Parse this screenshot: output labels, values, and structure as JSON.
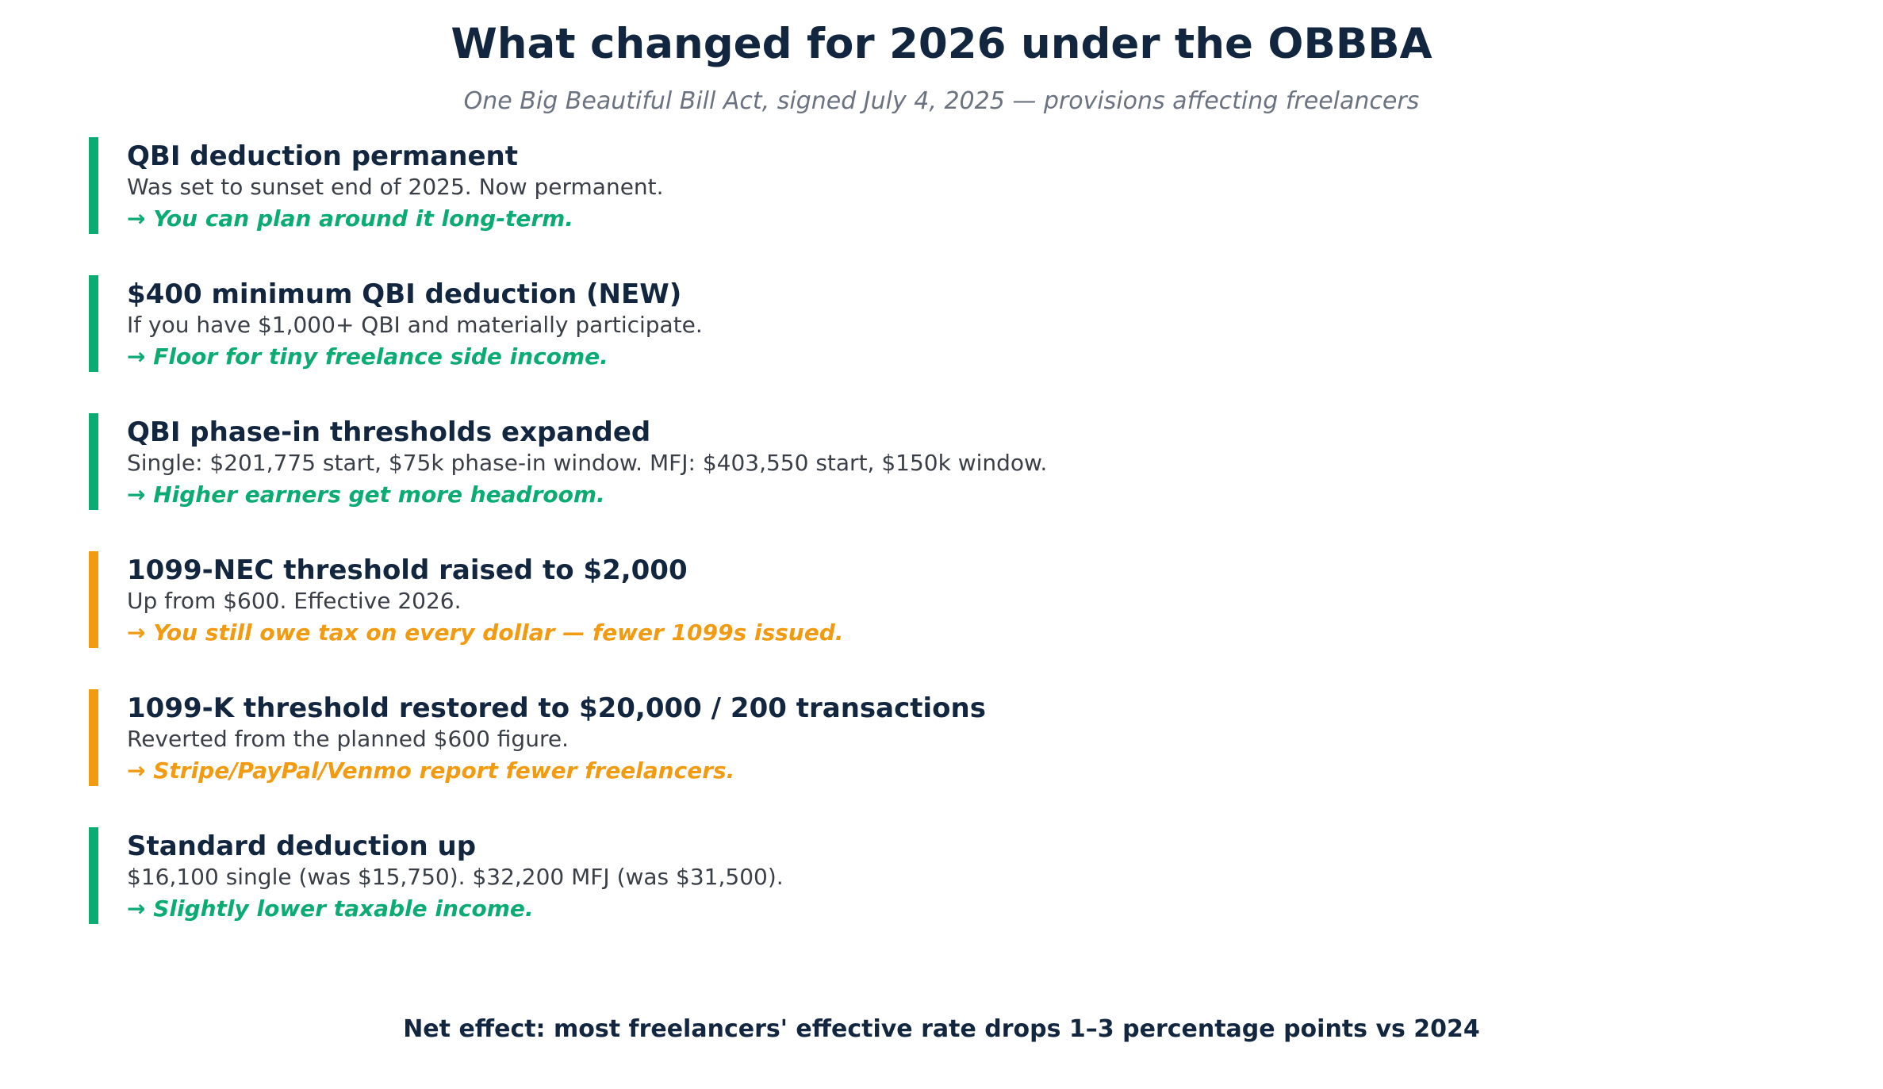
{
  "header": {
    "title": "What changed for 2026 under the OBBBA",
    "subtitle": "One Big Beautiful Bill Act, signed July 4, 2025 — provisions affecting freelancers"
  },
  "colors": {
    "positive": "#0bab74",
    "caution": "#f29a10",
    "heading": "#13263f"
  },
  "provisions": [
    {
      "heading": "QBI deduction permanent",
      "detail": "Was set to sunset end of 2025. Now permanent.",
      "takeaway": "→ You can plan around it long-term.",
      "tone": "positive",
      "accent": "#0bab74"
    },
    {
      "heading": "$400 minimum QBI deduction (NEW)",
      "detail": "If you have $1,000+ QBI and materially participate.",
      "takeaway": "→ Floor for tiny freelance side income.",
      "tone": "positive",
      "accent": "#0bab74"
    },
    {
      "heading": "QBI phase-in thresholds expanded",
      "detail": "Single: $201,775 start, $75k phase-in window. MFJ: $403,550 start, $150k window.",
      "takeaway": "→ Higher earners get more headroom.",
      "tone": "positive",
      "accent": "#0bab74"
    },
    {
      "heading": "1099-NEC threshold raised to $2,000",
      "detail": "Up from $600. Effective 2026.",
      "takeaway": "→ You still owe tax on every dollar — fewer 1099s issued.",
      "tone": "caution",
      "accent": "#f29a10"
    },
    {
      "heading": "1099-K threshold restored to $20,000 / 200 transactions",
      "detail": "Reverted from the planned $600 figure.",
      "takeaway": "→ Stripe/PayPal/Venmo report fewer freelancers.",
      "tone": "caution",
      "accent": "#f29a10"
    },
    {
      "heading": "Standard deduction up",
      "detail": "$16,100 single (was $15,750). $32,200 MFJ (was $31,500).",
      "takeaway": "→ Slightly lower taxable income.",
      "tone": "positive",
      "accent": "#0bab74"
    }
  ],
  "footer": {
    "text": "Net effect: most freelancers' effective rate drops 1–3 percentage points vs 2024"
  }
}
